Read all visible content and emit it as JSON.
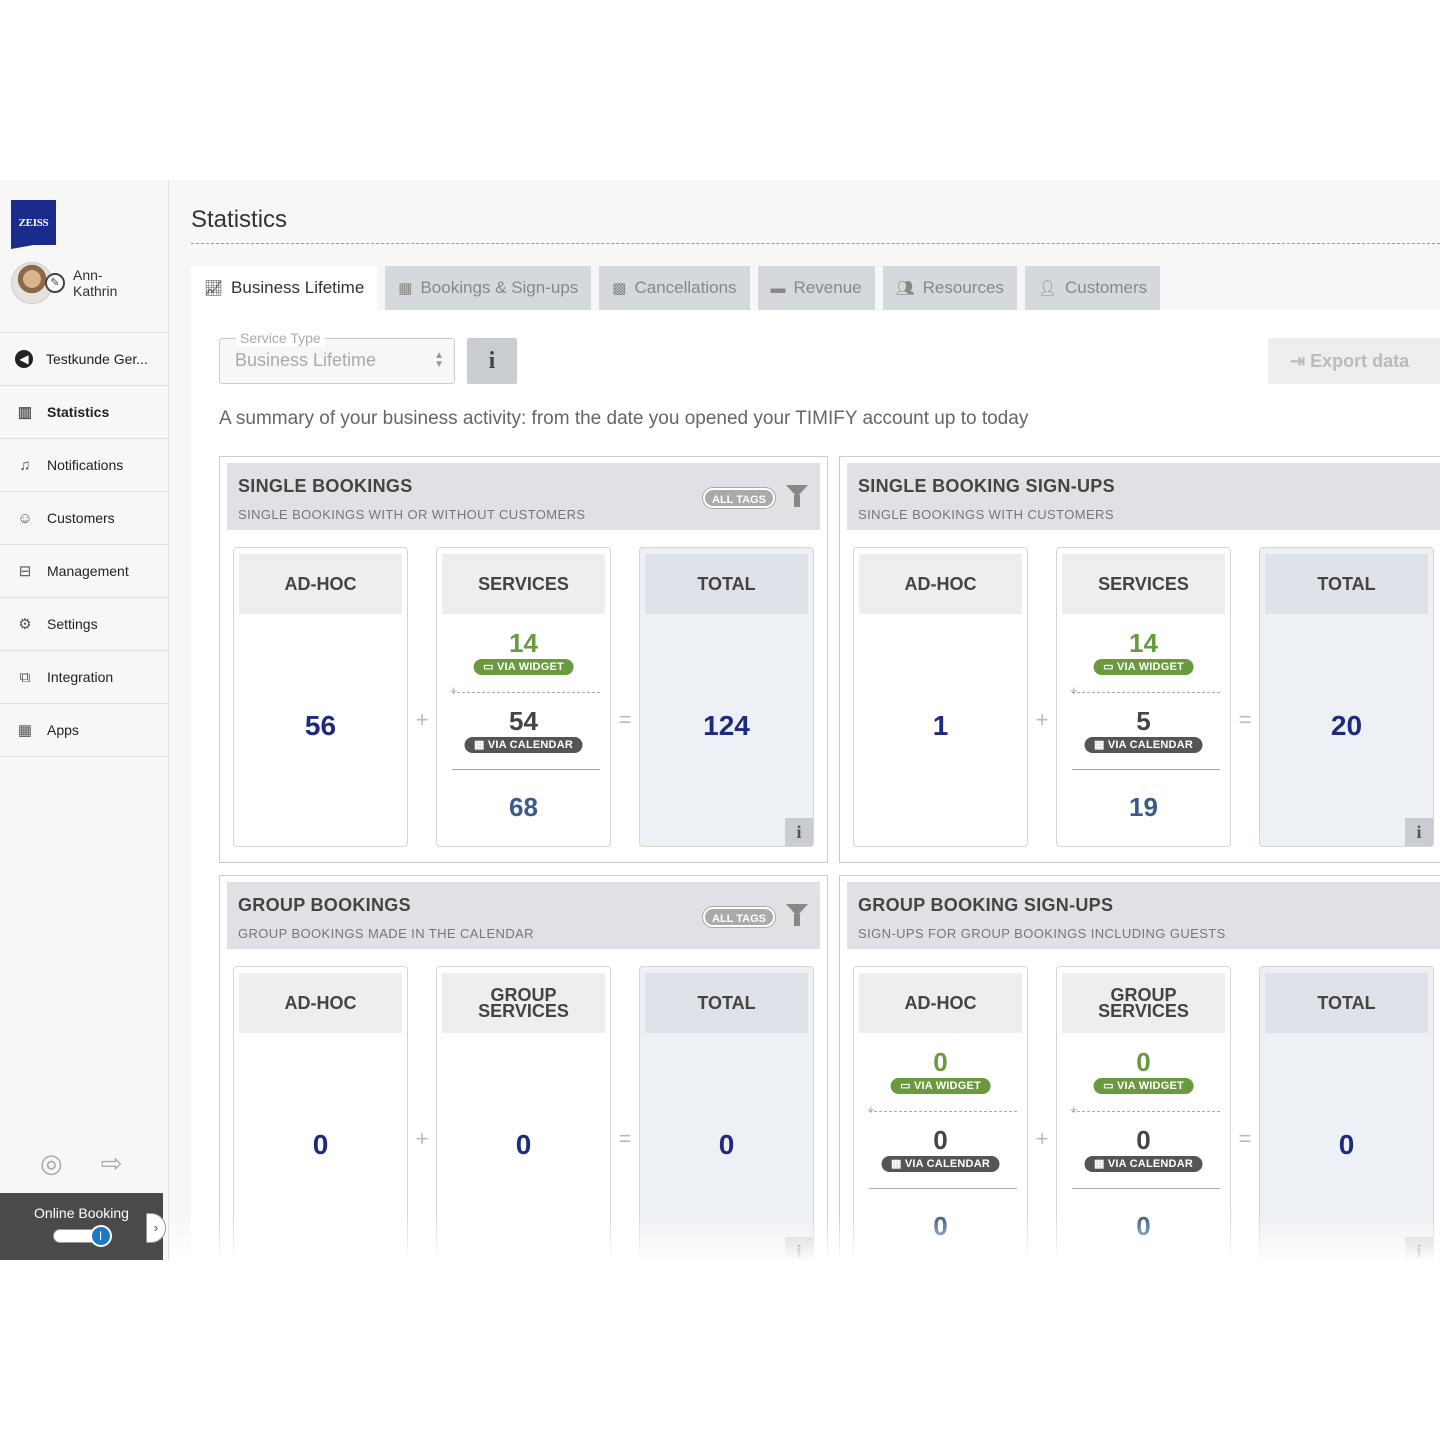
{
  "sidebar": {
    "logo_text": "ZEISS",
    "user_name": "Ann-\nKathrin",
    "items": [
      {
        "label": "Testkunde Ger...",
        "icon": "back-arrow-icon"
      },
      {
        "label": "Statistics",
        "icon": "chart-icon"
      },
      {
        "label": "Notifications",
        "icon": "bell-icon"
      },
      {
        "label": "Customers",
        "icon": "user-icon"
      },
      {
        "label": "Management",
        "icon": "inbox-icon"
      },
      {
        "label": "Settings",
        "icon": "gears-icon"
      },
      {
        "label": "Integration",
        "icon": "puzzle-icon"
      },
      {
        "label": "Apps",
        "icon": "grid-icon"
      }
    ],
    "online_booking_label": "Online Booking",
    "toggle_knob": "I"
  },
  "header": {
    "title": "Statistics"
  },
  "tabs": [
    {
      "label": "Business Lifetime",
      "icon": "line-chart-icon"
    },
    {
      "label": "Bookings & Sign-ups",
      "icon": "calendar-icon"
    },
    {
      "label": "Cancellations",
      "icon": "calendar-x-icon"
    },
    {
      "label": "Revenue",
      "icon": "wallet-icon"
    },
    {
      "label": "Resources",
      "icon": "users-icon"
    },
    {
      "label": "Customers",
      "icon": "user-icon"
    }
  ],
  "filters": {
    "service_type_label": "Service Type",
    "service_type_value": "Business Lifetime",
    "info_label": "i",
    "export_label": "Export data"
  },
  "summary": "A summary of your business activity: from the date you opened your TIMIFY account up to today",
  "pills": {
    "widget": "VIA WIDGET",
    "calendar": "VIA CALENDAR",
    "all_tags": "ALL TAGS"
  },
  "cards": {
    "single_bookings": {
      "title": "SINGLE BOOKINGS",
      "subtitle": "SINGLE BOOKINGS WITH OR WITHOUT CUSTOMERS",
      "adhoc_label": "AD-HOC",
      "adhoc": "56",
      "services_label": "SERVICES",
      "widget": "14",
      "calendar": "54",
      "services_total": "68",
      "total_label": "TOTAL",
      "total": "124"
    },
    "single_signups": {
      "title": "SINGLE BOOKING SIGN-UPS",
      "subtitle": "SINGLE BOOKINGS WITH CUSTOMERS",
      "adhoc_label": "AD-HOC",
      "adhoc": "1",
      "services_label": "SERVICES",
      "widget": "14",
      "calendar": "5",
      "services_total": "19",
      "total_label": "TOTAL",
      "total": "20"
    },
    "group_bookings": {
      "title": "GROUP BOOKINGS",
      "subtitle": "GROUP BOOKINGS MADE IN THE CALENDAR",
      "adhoc_label": "AD-HOC",
      "adhoc": "0",
      "services_label": "GROUP\nSERVICES",
      "services": "0",
      "total_label": "TOTAL",
      "total": "0"
    },
    "group_signups": {
      "title": "GROUP BOOKING SIGN-UPS",
      "subtitle": "SIGN-UPS FOR GROUP BOOKINGS INCLUDING GUESTS",
      "adhoc_label": "AD-HOC",
      "adhoc_widget": "0",
      "adhoc_calendar": "0",
      "adhoc_total": "0",
      "services_label": "GROUP\nSERVICES",
      "widget": "0",
      "calendar": "0",
      "services_total": "0",
      "total_label": "TOTAL",
      "total": "0"
    }
  },
  "operators": {
    "plus": "+",
    "equals": "="
  },
  "colors": {
    "accent_green": "#6a9a3e",
    "number_navy": "#1d2a80",
    "brand_blue": "#1a2b8c"
  }
}
